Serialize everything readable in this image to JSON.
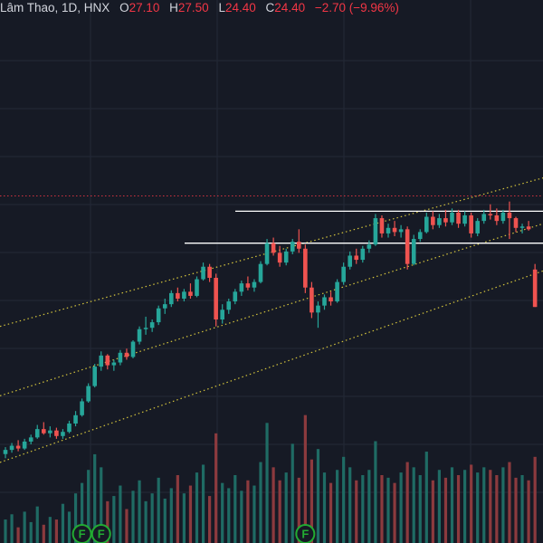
{
  "legend": {
    "symbol_label": "Lâm Thao, 1D, HNX",
    "o_label": "O",
    "o_value": "27.10",
    "h_label": "H",
    "h_value": "27.50",
    "l_label": "L",
    "l_value": "24.40",
    "c_label": "C",
    "c_value": "24.40",
    "change": "−2.70 (−9.96%)"
  },
  "colors": {
    "background": "#161a25",
    "grid": "#242936",
    "up": "#26a69a",
    "down": "#ef5350",
    "volume_up": "#1f6b64",
    "volume_down": "#8c3a3e",
    "channel": "#d4c43c",
    "price_line": "#f23645",
    "level_line": "#ffffff",
    "marker_ring": "#22ab32",
    "legend_text": "#d1d4dc",
    "legend_value": "#f23645"
  },
  "markers": [
    {
      "label": "F",
      "bar": 12
    },
    {
      "label": "F",
      "bar": 15
    },
    {
      "label": "F",
      "bar": 47
    }
  ],
  "chart_data": {
    "type": "candlestick",
    "title": "Lâm Thao, 1D, HNX",
    "open": 27.1,
    "high": 27.5,
    "low": 24.4,
    "close": 24.4,
    "change": -2.7,
    "change_percent": -9.96,
    "grid": true,
    "series": [
      {
        "name": "price",
        "ohlc": [
          [
            13.8,
            14.3,
            13.5,
            14.1
          ],
          [
            14.1,
            14.6,
            13.9,
            14.4
          ],
          [
            14.4,
            14.8,
            14.0,
            14.2
          ],
          [
            14.2,
            14.9,
            14.1,
            14.7
          ],
          [
            14.7,
            15.2,
            14.5,
            15.0
          ],
          [
            15.0,
            15.9,
            14.9,
            15.6
          ],
          [
            15.6,
            16.1,
            15.2,
            15.3
          ],
          [
            15.3,
            15.8,
            15.0,
            15.5
          ],
          [
            15.5,
            15.7,
            14.9,
            15.1
          ],
          [
            15.1,
            15.6,
            14.9,
            15.4
          ],
          [
            15.4,
            16.2,
            15.3,
            16.0
          ],
          [
            16.0,
            16.9,
            15.8,
            16.6
          ],
          [
            16.6,
            17.8,
            16.5,
            17.6
          ],
          [
            17.6,
            18.9,
            17.5,
            18.7
          ],
          [
            18.7,
            20.3,
            18.6,
            20.1
          ],
          [
            20.1,
            21.2,
            19.8,
            20.9
          ],
          [
            20.9,
            21.0,
            19.9,
            20.2
          ],
          [
            20.2,
            20.6,
            19.8,
            20.4
          ],
          [
            20.4,
            21.3,
            20.2,
            21.1
          ],
          [
            21.1,
            21.4,
            20.6,
            20.8
          ],
          [
            20.8,
            22.0,
            20.7,
            21.9
          ],
          [
            21.9,
            23.0,
            21.7,
            22.8
          ],
          [
            22.8,
            23.7,
            22.4,
            22.9
          ],
          [
            22.9,
            23.5,
            22.6,
            23.3
          ],
          [
            23.3,
            24.5,
            23.1,
            24.3
          ],
          [
            24.3,
            25.0,
            23.9,
            24.6
          ],
          [
            24.6,
            25.6,
            24.4,
            25.4
          ],
          [
            25.4,
            25.8,
            24.8,
            25.0
          ],
          [
            25.0,
            25.7,
            24.8,
            25.5
          ],
          [
            25.5,
            26.1,
            25.0,
            25.2
          ],
          [
            25.2,
            26.6,
            25.1,
            26.4
          ],
          [
            26.4,
            27.6,
            26.3,
            27.3
          ],
          [
            27.3,
            27.5,
            26.2,
            26.5
          ],
          [
            26.5,
            26.8,
            23.0,
            23.5
          ],
          [
            23.5,
            24.6,
            23.2,
            24.2
          ],
          [
            24.2,
            25.0,
            23.9,
            24.8
          ],
          [
            24.8,
            25.7,
            24.6,
            25.5
          ],
          [
            25.5,
            26.3,
            25.2,
            26.1
          ],
          [
            26.1,
            26.6,
            25.6,
            25.8
          ],
          [
            25.8,
            26.4,
            25.5,
            26.2
          ],
          [
            26.2,
            27.7,
            26.1,
            27.5
          ],
          [
            27.5,
            29.3,
            27.4,
            29.0
          ],
          [
            29.0,
            29.4,
            28.1,
            28.3
          ],
          [
            28.3,
            28.8,
            27.3,
            27.6
          ],
          [
            27.6,
            28.6,
            27.4,
            28.4
          ],
          [
            28.4,
            29.3,
            28.2,
            29.1
          ],
          [
            29.1,
            30.0,
            28.3,
            28.6
          ],
          [
            28.6,
            28.9,
            25.4,
            25.8
          ],
          [
            25.8,
            26.2,
            23.6,
            24.0
          ],
          [
            24.0,
            24.8,
            22.9,
            24.5
          ],
          [
            24.5,
            25.3,
            24.2,
            25.1
          ],
          [
            25.1,
            25.5,
            24.5,
            24.8
          ],
          [
            24.8,
            26.4,
            24.7,
            26.2
          ],
          [
            26.2,
            27.6,
            26.0,
            27.3
          ],
          [
            27.3,
            28.4,
            27.1,
            28.1
          ],
          [
            28.1,
            28.6,
            27.5,
            27.8
          ],
          [
            27.8,
            28.8,
            27.6,
            28.6
          ],
          [
            28.6,
            29.2,
            28.3,
            28.9
          ],
          [
            28.9,
            31.1,
            28.8,
            30.8
          ],
          [
            30.8,
            31.0,
            29.4,
            29.7
          ],
          [
            29.7,
            30.4,
            29.4,
            30.1
          ],
          [
            30.1,
            30.6,
            29.5,
            29.8
          ],
          [
            29.8,
            30.3,
            29.4,
            30.0
          ],
          [
            30.0,
            30.2,
            27.1,
            27.5
          ],
          [
            27.5,
            29.6,
            27.4,
            29.3
          ],
          [
            29.3,
            30.0,
            29.1,
            29.8
          ],
          [
            29.8,
            31.2,
            29.7,
            30.9
          ],
          [
            30.9,
            31.3,
            30.0,
            30.3
          ],
          [
            30.3,
            31.1,
            30.1,
            30.8
          ],
          [
            30.8,
            31.4,
            30.2,
            30.5
          ],
          [
            30.5,
            31.5,
            30.3,
            31.2
          ],
          [
            31.2,
            31.4,
            30.1,
            30.4
          ],
          [
            30.4,
            31.3,
            30.2,
            31.0
          ],
          [
            31.0,
            31.2,
            29.4,
            29.7
          ],
          [
            29.7,
            30.8,
            29.5,
            30.6
          ],
          [
            30.6,
            31.4,
            30.4,
            31.1
          ],
          [
            31.1,
            31.8,
            30.7,
            31.0
          ],
          [
            31.0,
            31.5,
            30.3,
            30.6
          ],
          [
            30.6,
            31.4,
            30.4,
            31.2
          ],
          [
            31.2,
            32.0,
            29.3,
            30.8
          ],
          [
            30.8,
            30.9,
            29.8,
            30.1
          ],
          [
            30.1,
            30.4,
            29.7,
            30.2
          ],
          [
            30.2,
            30.6,
            29.9,
            30.0
          ],
          [
            27.1,
            27.5,
            24.4,
            24.4
          ]
        ]
      },
      {
        "name": "volume",
        "values": [
          0.9,
          1.1,
          0.6,
          1.2,
          0.8,
          1.4,
          0.7,
          1.0,
          0.9,
          1.5,
          1.2,
          1.9,
          2.3,
          2.8,
          3.4,
          2.9,
          1.6,
          1.8,
          2.2,
          1.3,
          2.0,
          2.4,
          1.6,
          1.9,
          2.5,
          1.7,
          2.1,
          2.6,
          1.9,
          2.2,
          2.7,
          3.0,
          1.8,
          4.2,
          2.3,
          2.1,
          2.6,
          2.0,
          2.4,
          2.2,
          3.1,
          4.6,
          2.9,
          2.4,
          2.7,
          3.8,
          2.5,
          4.9,
          3.2,
          3.6,
          2.7,
          2.3,
          2.8,
          3.3,
          2.9,
          2.4,
          2.6,
          2.8,
          3.9,
          2.6,
          2.5,
          2.3,
          2.7,
          3.1,
          2.9,
          2.6,
          3.5,
          2.4,
          2.8,
          2.5,
          2.9,
          2.6,
          2.8,
          3.0,
          2.7,
          2.9,
          2.8,
          2.6,
          2.9,
          3.1,
          2.5,
          2.6,
          2.4,
          3.3
        ]
      },
      {
        "name": "channel",
        "upper": [
          23.0,
          33.7
        ],
        "middle": [
          18.0,
          30.4
        ],
        "lower": [
          13.2,
          27.0
        ]
      },
      {
        "name": "levels",
        "values": [
          31.3,
          29.0,
          32.4
        ]
      }
    ]
  }
}
